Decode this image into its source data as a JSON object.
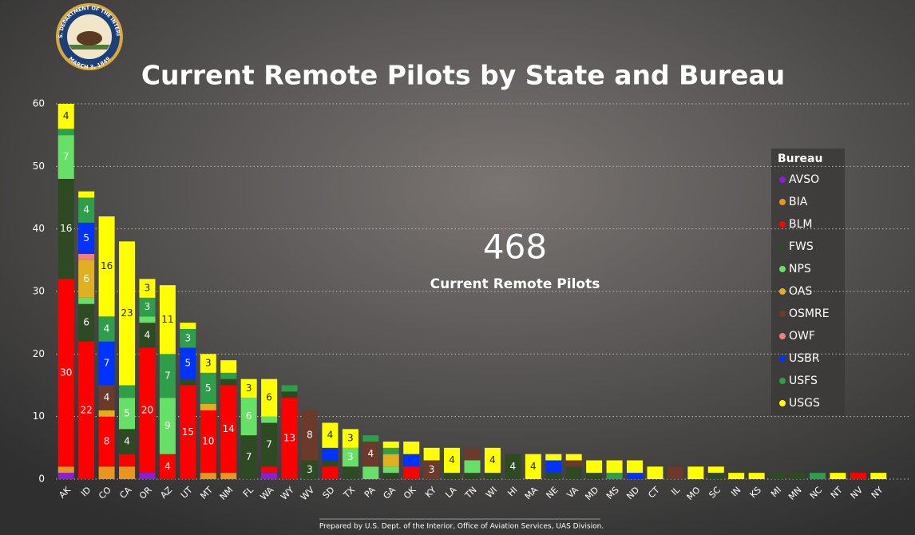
{
  "logo": {
    "top": "U.S. DEPARTMENT OF THE INTERIOR",
    "bottom": "MARCH 3, 1849"
  },
  "footer": "Prepared by U.S. Dept. of the Interior, Office of Aviation Services, UAS Division.",
  "kpi": {
    "value": 468,
    "label": "Current Remote Pilots"
  },
  "chart_data": {
    "type": "stacked_bar",
    "title": "Current Remote Pilots by State and Bureau",
    "legend_title": "Bureau",
    "legend": "right",
    "grid": true,
    "ylim": [
      0,
      60
    ],
    "yticks": [
      0,
      10,
      20,
      30,
      40,
      50,
      60
    ],
    "categories": [
      "AK",
      "ID",
      "CO",
      "CA",
      "OR",
      "AZ",
      "UT",
      "MT",
      "NM",
      "FL",
      "WA",
      "WY",
      "WV",
      "SD",
      "TX",
      "PA",
      "GA",
      "OK",
      "KY",
      "LA",
      "TN",
      "WI",
      "HI",
      "MA",
      "NE",
      "VA",
      "MD",
      "MS",
      "ND",
      "CT",
      "IL",
      "MO",
      "SC",
      "IN",
      "KS",
      "MI",
      "MN",
      "NC",
      "NT",
      "NV",
      "NY"
    ],
    "series": [
      {
        "name": "AVSO",
        "color": "#8b1fd6",
        "values": [
          1,
          0,
          0,
          0,
          1,
          0,
          0,
          0,
          0,
          0,
          1,
          0,
          0,
          0,
          0,
          0,
          0,
          0,
          0,
          0,
          0,
          0,
          0,
          0,
          0,
          0,
          0,
          0,
          0,
          0,
          0,
          0,
          0,
          0,
          0,
          0,
          0,
          0,
          0,
          0,
          0
        ]
      },
      {
        "name": "BIA",
        "color": "#e8961e",
        "values": [
          1,
          0,
          2,
          2,
          0,
          0,
          0,
          1,
          1,
          0,
          0,
          0,
          0,
          0,
          0,
          0,
          0,
          0,
          0,
          0,
          0,
          0,
          0,
          0,
          0,
          0,
          0,
          0,
          0,
          0,
          0,
          0,
          0,
          0,
          0,
          0,
          0,
          0,
          0,
          0,
          0
        ]
      },
      {
        "name": "BLM",
        "color": "#ff0000",
        "values": [
          30,
          22,
          8,
          2,
          20,
          4,
          15,
          10,
          14,
          0,
          1,
          13,
          0,
          2,
          0,
          0,
          0,
          2,
          0,
          0,
          0,
          0,
          0,
          0,
          0,
          0,
          0,
          0,
          0,
          0,
          0,
          0,
          0,
          0,
          0,
          0,
          0,
          0,
          0,
          1,
          0
        ]
      },
      {
        "name": "FWS",
        "color": "#2d4a22",
        "values": [
          16,
          6,
          0,
          4,
          4,
          0,
          1,
          0,
          1,
          7,
          7,
          1,
          3,
          1,
          2,
          0,
          1,
          0,
          0,
          1,
          1,
          1,
          4,
          0,
          1,
          2,
          1,
          0,
          0,
          0,
          0,
          0,
          1,
          0,
          0,
          1,
          1,
          0,
          0,
          0,
          0
        ]
      },
      {
        "name": "NPS",
        "color": "#66e066",
        "values": [
          7,
          1,
          0,
          5,
          1,
          9,
          0,
          0,
          0,
          6,
          1,
          0,
          0,
          0,
          3,
          2,
          1,
          0,
          0,
          0,
          2,
          0,
          0,
          0,
          0,
          0,
          0,
          0,
          0,
          0,
          0,
          0,
          0,
          0,
          0,
          0,
          0,
          0,
          0,
          0,
          0
        ]
      },
      {
        "name": "OAS",
        "color": "#e0b020",
        "values": [
          0,
          6,
          1,
          0,
          0,
          0,
          0,
          1,
          0,
          0,
          0,
          0,
          0,
          0,
          0,
          0,
          2,
          0,
          0,
          0,
          0,
          0,
          0,
          0,
          0,
          0,
          0,
          0,
          0,
          0,
          0,
          0,
          0,
          0,
          0,
          0,
          0,
          0,
          0,
          0,
          0
        ]
      },
      {
        "name": "OSMRE",
        "color": "#6b3a2a",
        "values": [
          0,
          0,
          4,
          0,
          0,
          0,
          0,
          0,
          0,
          0,
          0,
          0,
          8,
          0,
          0,
          4,
          0,
          0,
          3,
          0,
          2,
          0,
          0,
          0,
          0,
          1,
          0,
          0,
          0,
          0,
          2,
          0,
          0,
          0,
          0,
          0,
          0,
          0,
          0,
          0,
          0
        ]
      },
      {
        "name": "OWF",
        "color": "#f08080",
        "values": [
          0,
          1,
          0,
          0,
          0,
          0,
          0,
          0,
          0,
          0,
          0,
          0,
          0,
          0,
          0,
          0,
          0,
          0,
          0,
          0,
          0,
          0,
          0,
          0,
          0,
          0,
          0,
          0,
          0,
          0,
          0,
          0,
          0,
          0,
          0,
          0,
          0,
          0,
          0,
          0,
          0
        ]
      },
      {
        "name": "USBR",
        "color": "#0033ff",
        "values": [
          0,
          5,
          7,
          0,
          0,
          0,
          5,
          0,
          0,
          0,
          0,
          0,
          0,
          2,
          0,
          0,
          0,
          2,
          0,
          0,
          0,
          0,
          0,
          0,
          2,
          0,
          0,
          0,
          1,
          0,
          0,
          0,
          0,
          0,
          0,
          0,
          0,
          0,
          0,
          0,
          0
        ]
      },
      {
        "name": "USFS",
        "color": "#2e9e4a",
        "values": [
          1,
          4,
          4,
          2,
          3,
          7,
          3,
          5,
          1,
          0,
          0,
          1,
          0,
          0,
          0,
          1,
          1,
          0,
          0,
          0,
          0,
          0,
          0,
          0,
          0,
          0,
          0,
          1,
          0,
          0,
          0,
          0,
          0,
          0,
          0,
          0,
          0,
          1,
          0,
          0,
          0
        ]
      },
      {
        "name": "USGS",
        "color": "#ffff00",
        "values": [
          4,
          1,
          16,
          23,
          3,
          11,
          1,
          3,
          2,
          3,
          6,
          0,
          0,
          4,
          3,
          0,
          1,
          2,
          2,
          4,
          0,
          4,
          0,
          4,
          1,
          1,
          2,
          2,
          2,
          2,
          0,
          2,
          1,
          1,
          1,
          0,
          0,
          0,
          1,
          0,
          1
        ]
      }
    ]
  }
}
